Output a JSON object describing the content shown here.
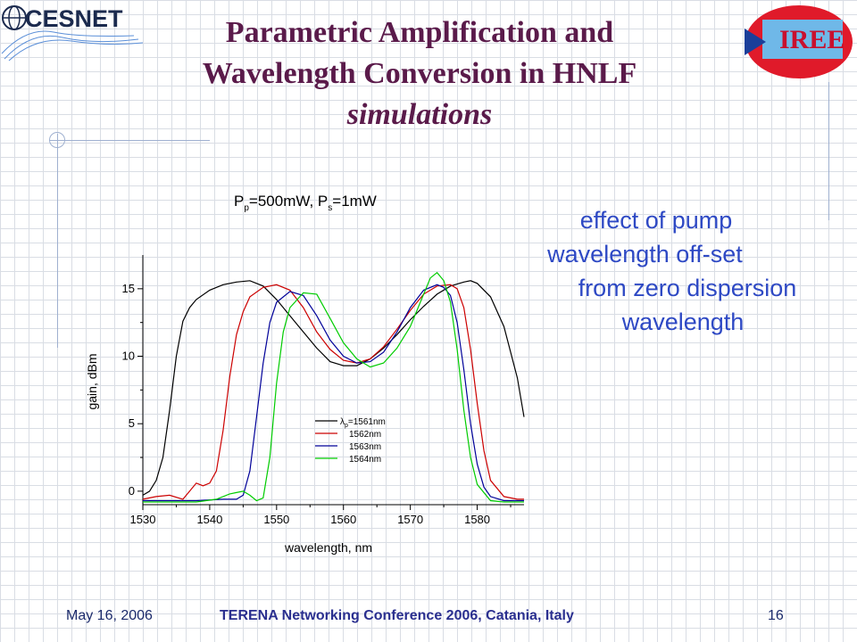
{
  "header": {
    "title_line1": "Parametric Amplification and",
    "title_line2": "Wavelength Conversion in HNLF",
    "title_line3": "simulations",
    "logo_left": "CESNET",
    "logo_right": "IREE"
  },
  "annotation": {
    "line1": "effect of pump",
    "line2": "wavelength off-set",
    "line3": "from zero dispersion",
    "line4": "wavelength"
  },
  "footer": {
    "date": "May 16, 2006",
    "conference": "TERENA Networking Conference 2006, Catania, Italy",
    "page": "16"
  },
  "chart_data": {
    "type": "line",
    "title_main": "P",
    "title_sub1": "p",
    "title_mid": "=500mW, P",
    "title_sub2": "s",
    "title_end": "=1mW",
    "xlabel": "wavelength, nm",
    "ylabel": "gain, dBm",
    "xlim": [
      1530,
      1587
    ],
    "ylim": [
      -1,
      17.5
    ],
    "xticks": [
      1530,
      1540,
      1550,
      1560,
      1570,
      1580
    ],
    "yticks": [
      0,
      5,
      10,
      15
    ],
    "legend_position": "middle-right",
    "legend_symbol": "λ",
    "legend_symbol_sub": "p",
    "series": [
      {
        "name": "=1561nm",
        "color": "#000000",
        "x": [
          1530,
          1531,
          1532,
          1533,
          1534,
          1535,
          1536,
          1537,
          1538,
          1540,
          1542,
          1544,
          1546,
          1548,
          1550,
          1553,
          1556,
          1558,
          1560,
          1562,
          1564,
          1566,
          1568,
          1570,
          1572,
          1574,
          1576,
          1578,
          1579,
          1580,
          1582,
          1584,
          1586,
          1587
        ],
        "y": [
          -0.3,
          0,
          0.8,
          2.5,
          6,
          10,
          12.6,
          13.6,
          14.2,
          14.9,
          15.3,
          15.5,
          15.6,
          15.2,
          14.2,
          12.4,
          10.6,
          9.6,
          9.3,
          9.3,
          9.8,
          10.6,
          11.6,
          12.7,
          13.7,
          14.6,
          15.2,
          15.5,
          15.6,
          15.4,
          14.4,
          12.2,
          8.4,
          5.5
        ]
      },
      {
        "name": "1562nm",
        "color": "#cc0000",
        "x": [
          1530,
          1532,
          1534,
          1536,
          1538,
          1539,
          1540,
          1541,
          1542,
          1543,
          1544,
          1545,
          1546,
          1548,
          1550,
          1552,
          1554,
          1556,
          1558,
          1560,
          1562,
          1564,
          1566,
          1568,
          1570,
          1572,
          1574,
          1576,
          1577,
          1578,
          1579,
          1580,
          1581,
          1582,
          1584,
          1586,
          1587
        ],
        "y": [
          -0.6,
          -0.4,
          -0.3,
          -0.6,
          0.6,
          0.4,
          0.6,
          1.5,
          4.5,
          8.5,
          11.6,
          13.3,
          14.4,
          15.1,
          15.3,
          14.9,
          13.6,
          11.8,
          10.5,
          9.7,
          9.5,
          9.8,
          10.7,
          12,
          13.4,
          14.6,
          15.2,
          15.3,
          15,
          13.6,
          10.5,
          6.5,
          3,
          0.8,
          -0.4,
          -0.6,
          -0.6
        ]
      },
      {
        "name": "1563nm",
        "color": "#000099",
        "x": [
          1530,
          1534,
          1538,
          1542,
          1544,
          1545,
          1546,
          1547,
          1548,
          1549,
          1550,
          1552,
          1554,
          1556,
          1558,
          1560,
          1562,
          1564,
          1566,
          1568,
          1570,
          1572,
          1574,
          1575,
          1576,
          1577,
          1578,
          1579,
          1580,
          1581,
          1582,
          1584,
          1587
        ],
        "y": [
          -0.7,
          -0.7,
          -0.7,
          -0.6,
          -0.6,
          -0.3,
          1.5,
          5.5,
          9.5,
          12.5,
          14,
          14.8,
          14.5,
          13,
          11.2,
          10,
          9.5,
          9.6,
          10.3,
          11.8,
          13.6,
          14.9,
          15.3,
          15.1,
          14.5,
          12.5,
          9,
          5,
          2,
          0.3,
          -0.4,
          -0.7,
          -0.7
        ]
      },
      {
        "name": "1564nm",
        "color": "#00cc00",
        "x": [
          1530,
          1534,
          1538,
          1541,
          1543,
          1544,
          1545,
          1546,
          1547,
          1548,
          1549,
          1550,
          1551,
          1552,
          1554,
          1556,
          1558,
          1560,
          1562,
          1564,
          1566,
          1568,
          1570,
          1572,
          1573,
          1574,
          1575,
          1576,
          1577,
          1578,
          1579,
          1580,
          1582,
          1584,
          1587
        ],
        "y": [
          -0.8,
          -0.8,
          -0.8,
          -0.6,
          -0.2,
          -0.1,
          0,
          -0.3,
          -0.7,
          -0.5,
          2.5,
          8,
          11.8,
          13.6,
          14.7,
          14.6,
          12.8,
          11,
          9.8,
          9.2,
          9.5,
          10.6,
          12.2,
          14.6,
          15.8,
          16.2,
          15.6,
          14,
          10.5,
          6,
          2.5,
          0.5,
          -0.7,
          -0.8,
          -0.8
        ]
      }
    ]
  }
}
